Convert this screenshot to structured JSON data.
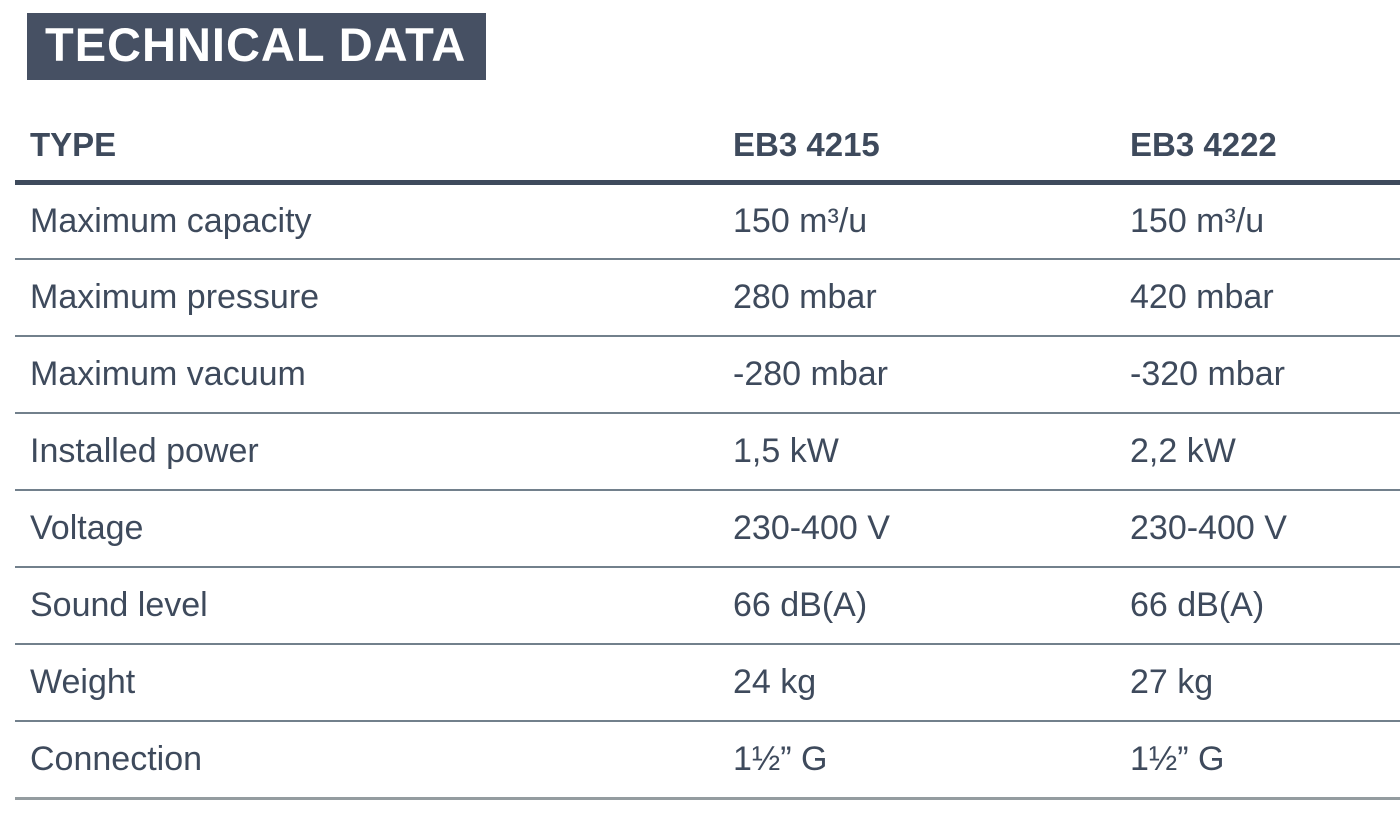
{
  "title": "TECHNICAL DATA",
  "colors": {
    "header_bg": "#465063",
    "text": "#3e4a5c",
    "thick_rule": "#3e4a5c",
    "row_rule": "#72808c",
    "bottom_rule": "#949ca0"
  },
  "table": {
    "columns": [
      "TYPE",
      "EB3 4215",
      "EB3 4222"
    ],
    "rows": [
      {
        "label": "Maximum capacity",
        "values": [
          "150 m³/u",
          "150 m³/u"
        ]
      },
      {
        "label": "Maximum pressure",
        "values": [
          "280 mbar",
          "420 mbar"
        ]
      },
      {
        "label": "Maximum vacuum",
        "values": [
          "-280 mbar",
          "-320 mbar"
        ]
      },
      {
        "label": "Installed power",
        "values": [
          "1,5 kW",
          "2,2 kW"
        ]
      },
      {
        "label": "Voltage",
        "values": [
          "230-400 V",
          "230-400 V"
        ]
      },
      {
        "label": "Sound level",
        "values": [
          "66 dB(A)",
          "66 dB(A)"
        ]
      },
      {
        "label": "Weight",
        "values": [
          "24 kg",
          "27 kg"
        ]
      },
      {
        "label": "Connection",
        "values": [
          "1½” G",
          "1½” G"
        ]
      }
    ]
  }
}
